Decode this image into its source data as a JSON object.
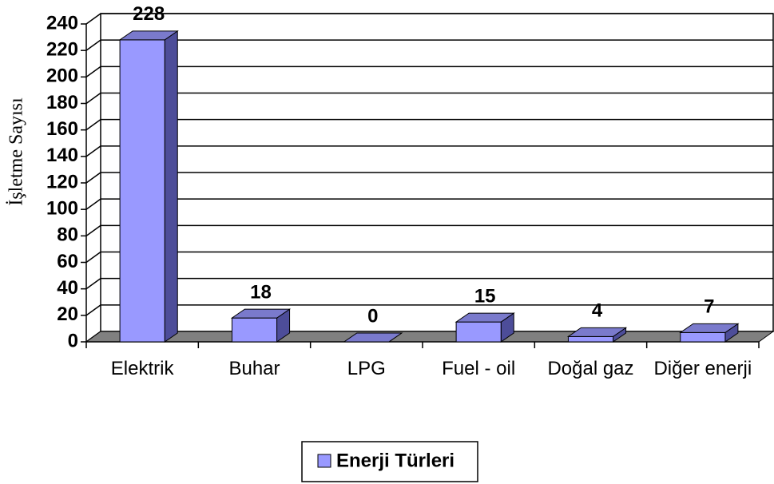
{
  "chart_data": {
    "type": "bar3d",
    "y_label": "İşletme Sayısı",
    "categories": [
      "Elektrik",
      "Buhar",
      "LPG",
      "Fuel - oil",
      "Doğal gaz",
      "Diğer enerji"
    ],
    "series": [
      {
        "name": "Enerji Türleri",
        "color": "#9999ff",
        "values": [
          228,
          18,
          0,
          15,
          4,
          7
        ]
      }
    ],
    "ylim": [
      0,
      240
    ],
    "yticks": [
      0,
      20,
      40,
      60,
      80,
      100,
      120,
      140,
      160,
      180,
      200,
      220,
      240
    ],
    "grid": true,
    "legend": "bottom"
  }
}
